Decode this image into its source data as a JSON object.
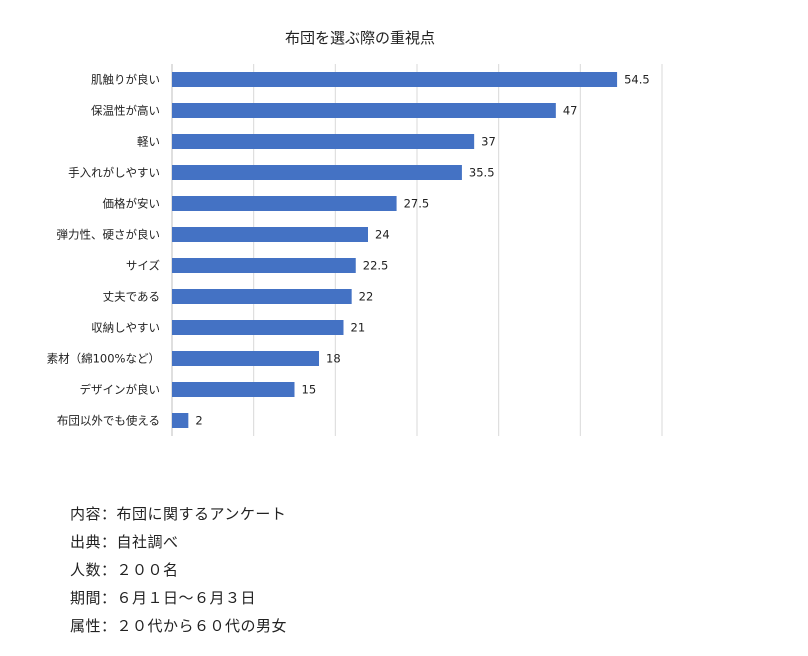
{
  "chart_data": {
    "type": "bar",
    "orientation": "horizontal",
    "title": "布団を選ぶ際の重視点",
    "categories": [
      "肌触りが良い",
      "保温性が高い",
      "軽い",
      "手入れがしやすい",
      "価格が安い",
      "弾力性、硬さが良い",
      "サイズ",
      "丈夫である",
      "収納しやすい",
      "素材（綿100%など）",
      "デザインが良い",
      "布団以外でも使える"
    ],
    "values": [
      54.5,
      47,
      37,
      35.5,
      27.5,
      24,
      22.5,
      22,
      21,
      18,
      15,
      2
    ],
    "data_labels": [
      "54.5",
      "47",
      "37",
      "35.5",
      "27.5",
      "24",
      "22.5",
      "22",
      "21",
      "18",
      "15",
      "2"
    ],
    "xlim": [
      0,
      60
    ],
    "grid": true,
    "legend": "none",
    "bar_color": "#4472c4",
    "grid_color": "#d9d9d9"
  },
  "notes": [
    "内容：布団に関するアンケート",
    "出典：自社調べ",
    "人数：２００名",
    "期間：６月１日～６月３日",
    "属性：２０代から６０代の男女"
  ]
}
